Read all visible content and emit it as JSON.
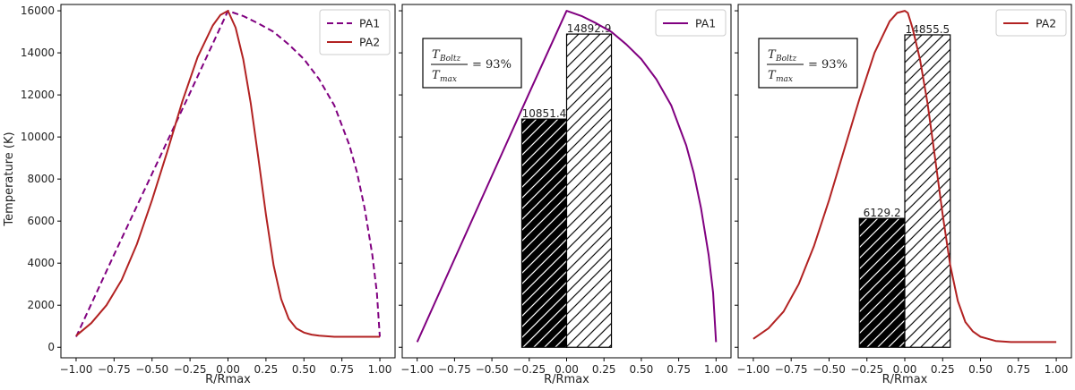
{
  "figure": {
    "ylabel": "Temperature (K)"
  },
  "chart_data": [
    {
      "type": "line",
      "xlabel": "R/Rmax",
      "ylabel": "Temperature (K)",
      "xlim": [
        -1.1,
        1.1
      ],
      "ylim": [
        -500,
        16300
      ],
      "xticks": [
        -1.0,
        -0.75,
        -0.5,
        -0.25,
        0.0,
        0.25,
        0.5,
        0.75,
        1.0
      ],
      "xtick_labels": [
        "−1.00",
        "−0.75",
        "−0.50",
        "−0.25",
        "0.00",
        "0.25",
        "0.50",
        "0.75",
        "1.00"
      ],
      "yticks": [
        0,
        2000,
        4000,
        6000,
        8000,
        10000,
        12000,
        14000,
        16000
      ],
      "ytick_labels": [
        "0",
        "2000",
        "4000",
        "6000",
        "8000",
        "10000",
        "12000",
        "14000",
        "16000"
      ],
      "legend_position": "top-right",
      "series": [
        {
          "name": "PA1",
          "color": "#800080",
          "style": "dashed",
          "x": [
            -1.0,
            -0.75,
            -0.5,
            -0.25,
            0.0,
            0.1,
            0.2,
            0.3,
            0.4,
            0.5,
            0.6,
            0.7,
            0.8,
            0.85,
            0.9,
            0.95,
            0.98,
            1.0
          ],
          "y": [
            500,
            4400,
            8250,
            12100,
            16000,
            15750,
            15400,
            15000,
            14400,
            13700,
            12750,
            11500,
            9600,
            8300,
            6600,
            4400,
            2600,
            500
          ]
        },
        {
          "name": "PA2",
          "color": "#b22222",
          "style": "solid",
          "x": [
            -1.0,
            -0.9,
            -0.8,
            -0.7,
            -0.6,
            -0.5,
            -0.4,
            -0.3,
            -0.2,
            -0.1,
            -0.05,
            0.0,
            0.05,
            0.1,
            0.15,
            0.2,
            0.25,
            0.3,
            0.35,
            0.4,
            0.45,
            0.5,
            0.55,
            0.6,
            0.7,
            0.8,
            0.9,
            1.0
          ],
          "y": [
            550,
            1150,
            2000,
            3200,
            4900,
            7000,
            9300,
            11700,
            13800,
            15300,
            15800,
            16000,
            15200,
            13700,
            11600,
            9000,
            6300,
            3900,
            2300,
            1350,
            900,
            700,
            600,
            550,
            500,
            500,
            500,
            500
          ]
        }
      ]
    },
    {
      "type": "line",
      "xlabel": "R/Rmax",
      "xlim": [
        -1.1,
        1.1
      ],
      "ylim": [
        -500,
        16300
      ],
      "xticks": [
        -1.0,
        -0.75,
        -0.5,
        -0.25,
        0.0,
        0.25,
        0.5,
        0.75,
        1.0
      ],
      "xtick_labels": [
        "−1.00",
        "−0.75",
        "−0.50",
        "−0.25",
        "0.00",
        "0.25",
        "0.50",
        "0.75",
        "1.00"
      ],
      "yticks": [
        0,
        2000,
        4000,
        6000,
        8000,
        10000,
        12000,
        14000,
        16000
      ],
      "ytick_labels": [
        "",
        "",
        "",
        "",
        "",
        "",
        "",
        "",
        ""
      ],
      "legend_position": "top-right",
      "series": [
        {
          "name": "PA1",
          "color": "#800080",
          "style": "solid",
          "x": [
            -1.0,
            -0.75,
            -0.5,
            -0.25,
            0.0,
            0.1,
            0.2,
            0.3,
            0.4,
            0.5,
            0.6,
            0.7,
            0.8,
            0.85,
            0.9,
            0.95,
            0.98,
            1.0
          ],
          "y": [
            250,
            4200,
            8150,
            12100,
            16000,
            15750,
            15400,
            15000,
            14400,
            13700,
            12750,
            11500,
            9600,
            8300,
            6600,
            4400,
            2600,
            250
          ]
        }
      ],
      "bars": [
        {
          "x0": -0.3,
          "x1": 0.0,
          "value": 10851.4,
          "label": "10851.4",
          "fill": "solid"
        },
        {
          "x0": 0.0,
          "x1": 0.3,
          "value": 14892.9,
          "label": "14892.9",
          "fill": "hatched"
        }
      ],
      "annotation": {
        "position": "top-left",
        "numerator": "T",
        "numerator_sub": "Boltz",
        "denominator": "T",
        "denominator_sub": "max",
        "equals": "= 93%"
      }
    },
    {
      "type": "line",
      "xlabel": "R/Rmax",
      "xlim": [
        -1.1,
        1.1
      ],
      "ylim": [
        -500,
        16300
      ],
      "xticks": [
        -1.0,
        -0.75,
        -0.5,
        -0.25,
        0.0,
        0.25,
        0.5,
        0.75,
        1.0
      ],
      "xtick_labels": [
        "−1.00",
        "−0.75",
        "−0.50",
        "−0.25",
        "0.00",
        "0.25",
        "0.50",
        "0.75",
        "1.00"
      ],
      "yticks": [
        0,
        2000,
        4000,
        6000,
        8000,
        10000,
        12000,
        14000,
        16000
      ],
      "ytick_labels": [
        "",
        "",
        "",
        "",
        "",
        "",
        "",
        "",
        ""
      ],
      "legend_position": "top-right",
      "series": [
        {
          "name": "PA2",
          "color": "#b22222",
          "style": "solid",
          "x": [
            -1.0,
            -0.9,
            -0.8,
            -0.7,
            -0.6,
            -0.5,
            -0.4,
            -0.3,
            -0.2,
            -0.1,
            -0.05,
            0.0,
            0.02,
            0.05,
            0.1,
            0.15,
            0.2,
            0.25,
            0.3,
            0.35,
            0.4,
            0.45,
            0.5,
            0.55,
            0.6,
            0.7,
            0.8,
            0.9,
            1.0
          ],
          "y": [
            400,
            900,
            1700,
            3000,
            4800,
            7000,
            9400,
            11800,
            14000,
            15500,
            15900,
            16000,
            15900,
            15200,
            13700,
            11600,
            9000,
            6300,
            3900,
            2200,
            1200,
            750,
            500,
            400,
            300,
            250,
            250,
            250,
            250
          ]
        }
      ],
      "bars": [
        {
          "x0": -0.3,
          "x1": 0.0,
          "value": 6129.2,
          "label": "6129.2",
          "fill": "solid"
        },
        {
          "x0": 0.0,
          "x1": 0.3,
          "value": 14855.5,
          "label": "14855.5",
          "fill": "hatched"
        }
      ],
      "annotation": {
        "position": "top-left",
        "numerator": "T",
        "numerator_sub": "Boltz",
        "denominator": "T",
        "denominator_sub": "max",
        "equals": "= 93%"
      }
    }
  ]
}
